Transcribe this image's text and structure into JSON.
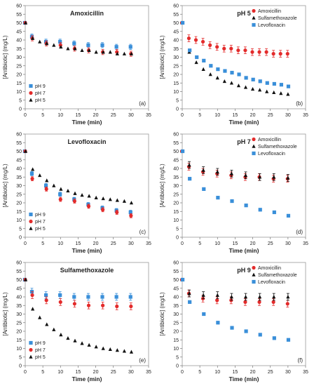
{
  "figure": {
    "colors": {
      "pH 9": "#3a8fd9",
      "pH 7": "#e32b2b",
      "pH 5": "#111111",
      "Amoxicillin": "#e32b2b",
      "Sulfamethoxazole": "#111111",
      "Levofloxacin": "#3a8fd9"
    },
    "markers": {
      "pH 9": "square",
      "pH 7": "circle",
      "pH 5": "triangle",
      "Amoxicillin": "circle",
      "Sulfamethoxazole": "triangle",
      "Levofloxacin": "square"
    }
  },
  "chart_data": [
    {
      "type": "scatter",
      "title": "Amoxicillin",
      "xlabel": "Time (min)",
      "ylabel": "[Antibiotic] (mg/L)",
      "xlim": [
        0,
        35
      ],
      "ylim": [
        0,
        60
      ],
      "xticks": [
        "0",
        "5",
        "10",
        "15",
        "20",
        "25",
        "30",
        "35"
      ],
      "yticks": [
        "0",
        "5",
        "10",
        "15",
        "20",
        "25",
        "30",
        "35",
        "40",
        "45",
        "50",
        "55",
        "60"
      ],
      "panel_label": "(a)",
      "legend_position": "bottom-left",
      "series": [
        {
          "name": "pH 9",
          "x": [
            0,
            2,
            6,
            10,
            14,
            18,
            22,
            26,
            30
          ],
          "y": [
            50,
            42,
            39,
            39,
            38,
            37,
            37,
            36,
            36
          ],
          "err": 1.5
        },
        {
          "name": "pH 7",
          "x": [
            0,
            2,
            6,
            10,
            14,
            18,
            22,
            26,
            30
          ],
          "y": [
            50,
            41,
            38,
            37,
            35,
            34,
            33,
            33,
            32
          ],
          "err": 1.5
        },
        {
          "name": "pH 5",
          "x": [
            0,
            2,
            4,
            6,
            8,
            10,
            12,
            14,
            16,
            18,
            20,
            22,
            24,
            26,
            28,
            30
          ],
          "y": [
            50,
            41,
            39,
            38,
            37,
            36,
            35,
            35,
            34,
            34,
            33,
            33,
            33,
            32,
            32,
            32
          ],
          "err": 0
        }
      ]
    },
    {
      "type": "scatter",
      "title": "pH 5",
      "xlabel": "Time (min)",
      "ylabel": "[Antibiotic] (mg/L)",
      "xlim": [
        0,
        35
      ],
      "ylim": [
        0,
        60
      ],
      "xticks": [
        "0",
        "5",
        "10",
        "15",
        "20",
        "25",
        "30",
        "35"
      ],
      "yticks": [
        "0",
        "5",
        "10",
        "15",
        "20",
        "25",
        "30",
        "35",
        "40",
        "45",
        "50",
        "55",
        "60"
      ],
      "panel_label": "(b)",
      "legend_position": "top-right",
      "series": [
        {
          "name": "Amoxicillin",
          "x": [
            0,
            2,
            4,
            6,
            8,
            10,
            12,
            14,
            16,
            18,
            20,
            22,
            24,
            26,
            28,
            30
          ],
          "y": [
            50,
            41,
            40,
            39,
            37,
            36,
            35,
            35,
            34,
            34,
            33,
            33,
            33,
            32,
            32,
            32
          ],
          "err": 2
        },
        {
          "name": "Sulfamethoxazole",
          "x": [
            0,
            2,
            4,
            6,
            8,
            10,
            12,
            14,
            16,
            18,
            20,
            22,
            24,
            26,
            28,
            30
          ],
          "y": [
            50,
            33,
            27,
            23,
            20,
            18,
            16,
            15,
            13.5,
            12.5,
            11.5,
            11,
            10,
            9.5,
            9,
            8.5
          ],
          "err": 0
        },
        {
          "name": "Levofloxacin",
          "x": [
            0,
            2,
            4,
            6,
            8,
            10,
            12,
            14,
            16,
            18,
            20,
            22,
            24,
            26,
            28,
            30
          ],
          "y": [
            50,
            34,
            30,
            28,
            25,
            23,
            22,
            21,
            20,
            18,
            17,
            16,
            15,
            14.5,
            14,
            13
          ],
          "err": 0
        }
      ]
    },
    {
      "type": "scatter",
      "title": "Levofloxacin",
      "xlabel": "Time (min)",
      "ylabel": "[Antibiotic] (mg/L)",
      "xlim": [
        0,
        35
      ],
      "ylim": [
        0,
        60
      ],
      "xticks": [
        "0",
        "5",
        "10",
        "15",
        "20",
        "25",
        "30",
        "35"
      ],
      "yticks": [
        "0",
        "5",
        "10",
        "15",
        "20",
        "25",
        "30",
        "35",
        "40",
        "45",
        "50",
        "55",
        "60"
      ],
      "panel_label": "(c)",
      "legend_position": "bottom-left",
      "series": [
        {
          "name": "pH 9",
          "x": [
            0,
            2,
            6,
            10,
            14,
            18,
            22,
            26,
            30
          ],
          "y": [
            50,
            37,
            30,
            25,
            22,
            19,
            17,
            15.5,
            14.5
          ],
          "err": 1.2
        },
        {
          "name": "pH 7",
          "x": [
            0,
            2,
            6,
            10,
            14,
            18,
            22,
            26,
            30
          ],
          "y": [
            50,
            34,
            28,
            22,
            21,
            18,
            16,
            14.5,
            12.5
          ],
          "err": 1.2
        },
        {
          "name": "pH 5",
          "x": [
            0,
            2,
            4,
            6,
            8,
            10,
            12,
            14,
            16,
            18,
            20,
            22,
            24,
            26,
            28,
            30
          ],
          "y": [
            50,
            39.5,
            36,
            33,
            30,
            28,
            27,
            25.5,
            24.5,
            24,
            23,
            22.5,
            22,
            21.5,
            21,
            20
          ],
          "err": 0
        }
      ]
    },
    {
      "type": "scatter",
      "title": "pH 7",
      "xlabel": "Time (min)",
      "ylabel": "[Antibiotic] (mg/L)",
      "xlim": [
        0,
        35
      ],
      "ylim": [
        0,
        60
      ],
      "xticks": [
        "0",
        "5",
        "10",
        "15",
        "20",
        "25",
        "30",
        "35"
      ],
      "yticks": [
        "0",
        "5",
        "10",
        "15",
        "20",
        "25",
        "30",
        "35",
        "40",
        "45",
        "50",
        "55",
        "60"
      ],
      "panel_label": "(d)",
      "legend_position": "top-right",
      "series": [
        {
          "name": "Amoxicillin",
          "x": [
            0,
            2,
            6,
            10,
            14,
            18,
            22,
            26,
            30
          ],
          "y": [
            50,
            41,
            38,
            37,
            36,
            35,
            35,
            34,
            34
          ],
          "err": 2
        },
        {
          "name": "Sulfamethoxazole",
          "x": [
            0,
            2,
            6,
            10,
            14,
            18,
            22,
            26,
            30
          ],
          "y": [
            50,
            42,
            39,
            38,
            37,
            36,
            35,
            35,
            34.5
          ],
          "err": 2
        },
        {
          "name": "Levofloxacin",
          "x": [
            0,
            2,
            6,
            10,
            14,
            18,
            22,
            26,
            30
          ],
          "y": [
            50,
            34,
            28,
            23,
            21,
            18.5,
            16,
            14.5,
            12.5
          ],
          "err": 0.8
        }
      ]
    },
    {
      "type": "scatter",
      "title": "Sulfamethoxazole",
      "xlabel": "Time (min)",
      "ylabel": "[Antibiotic] (mg/L)",
      "xlim": [
        0,
        35
      ],
      "ylim": [
        0,
        60
      ],
      "xticks": [
        "0",
        "5",
        "10",
        "15",
        "20",
        "25",
        "30",
        "35"
      ],
      "yticks": [
        "0",
        "5",
        "10",
        "15",
        "20",
        "25",
        "30",
        "35",
        "40",
        "45",
        "50",
        "55",
        "60"
      ],
      "panel_label": "(e)",
      "legend_position": "bottom-left",
      "series": [
        {
          "name": "pH 9",
          "x": [
            0,
            2,
            6,
            10,
            14,
            18,
            22,
            26,
            30
          ],
          "y": [
            50,
            43,
            41,
            41,
            40,
            40,
            40,
            40,
            40
          ],
          "err": 2
        },
        {
          "name": "pH 7",
          "x": [
            0,
            2,
            6,
            10,
            14,
            18,
            22,
            26,
            30
          ],
          "y": [
            50,
            41,
            38,
            37,
            36,
            35,
            35,
            34.5,
            34.5
          ],
          "err": 2
        },
        {
          "name": "pH 5",
          "x": [
            0,
            2,
            4,
            6,
            8,
            10,
            12,
            14,
            16,
            18,
            20,
            22,
            24,
            26,
            28,
            30
          ],
          "y": [
            50,
            33,
            28,
            24,
            21,
            18,
            16,
            14.5,
            13,
            12,
            11,
            10,
            9.5,
            9,
            8.5,
            8
          ],
          "err": 0
        }
      ]
    },
    {
      "type": "scatter",
      "title": "pH 9",
      "xlabel": "Time (min)",
      "ylabel": "[Antibiotic] (mg/L)",
      "xlim": [
        0,
        35
      ],
      "ylim": [
        0,
        60
      ],
      "xticks": [
        "0",
        "5",
        "10",
        "15",
        "20",
        "25",
        "30",
        "35"
      ],
      "yticks": [
        "0",
        "5",
        "10",
        "15",
        "20",
        "25",
        "30",
        "35",
        "40",
        "45",
        "50",
        "55",
        "60"
      ],
      "panel_label": "(f)",
      "legend_position": "top-right",
      "series": [
        {
          "name": "Amoxicillin",
          "x": [
            0,
            2,
            6,
            10,
            14,
            18,
            22,
            26,
            30
          ],
          "y": [
            50,
            42,
            39,
            38,
            38,
            37,
            37,
            37,
            36
          ],
          "err": 2
        },
        {
          "name": "Sulfamethoxazole",
          "x": [
            0,
            2,
            6,
            10,
            14,
            18,
            22,
            26,
            30
          ],
          "y": [
            50,
            42,
            41,
            41,
            40,
            40,
            40,
            40,
            40
          ],
          "err": 2
        },
        {
          "name": "Levofloxacin",
          "x": [
            0,
            2,
            6,
            10,
            14,
            18,
            22,
            26,
            30
          ],
          "y": [
            50,
            37,
            30,
            25,
            22,
            20,
            18,
            16,
            15
          ],
          "err": 0.8
        }
      ]
    }
  ]
}
